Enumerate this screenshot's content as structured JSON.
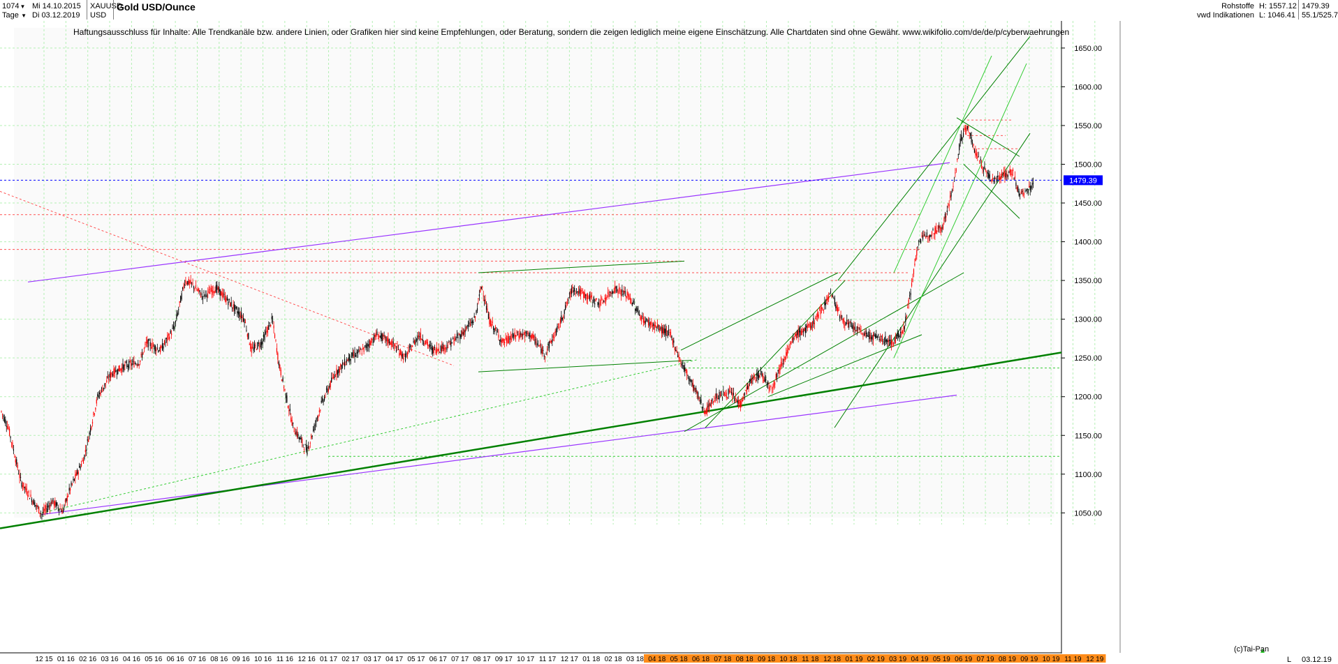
{
  "header": {
    "bars": "1074",
    "start_date": "Mi 14.10.2015",
    "end_date": "Di 03.12.2019",
    "period": "Tage",
    "symbol": "XAUUSD",
    "currency": "USD",
    "title": "Gold USD/Ounce",
    "category": "Rohstoffe",
    "source": "vwd Indikationen",
    "high_label": "H: 1557.12",
    "low_label": "L: 1046.41",
    "last_value": "1479.39",
    "extra_value": "55.1/525.7"
  },
  "disclaimer": "Haftungsausschluss für Inhalte: Alle Trendkanäle bzw. andere Linien, oder Grafiken hier sind keine Empfehlungen, oder Beratung, sondern die zeigen lediglich meine eigene Einschätzung. Alle Chartdaten sind ohne Gewähr.  www.wikifolio.com/de/de/p/cyberwaehrungen",
  "footer": {
    "copyright": "(c)Tai-Pan",
    "scale_mode": "L",
    "date": "03.12.19"
  },
  "colors": {
    "up_candle": "#000000",
    "down_candle": "#ff0000",
    "price_line": "#0000ff",
    "channel_purple": "#9933ff",
    "trend_green": "#008000",
    "bright_green": "#33cc33",
    "resistance_red": "#ff5050",
    "grid": "#b3f0b3",
    "highlight_band": "#ff8c1a"
  },
  "chart_data": {
    "type": "candlestick",
    "title": "Gold USD/Ounce",
    "ylim": [
      1035,
      1685
    ],
    "last_price": 1479.39,
    "high": 1557.12,
    "low": 1046.41,
    "y_ticks": [
      1050,
      1100,
      1150,
      1200,
      1250,
      1300,
      1350,
      1400,
      1450,
      1500,
      1550,
      1600,
      1650
    ],
    "y_tick_labels": [
      "1050.00",
      "1100.00",
      "1150.00",
      "1200.00",
      "1250.00",
      "1300.00",
      "1350.00",
      "1400.00",
      "1450.00",
      "1500.00",
      "1550.00",
      "1600.00",
      "1650.00"
    ],
    "x_ticks": [
      "12 15",
      "01 16",
      "02 16",
      "03 16",
      "04 16",
      "05 16",
      "06 16",
      "07 16",
      "08 16",
      "09 16",
      "10 16",
      "11 16",
      "12 16",
      "01 17",
      "02 17",
      "03 17",
      "04 17",
      "05 17",
      "06 17",
      "07 17",
      "08 17",
      "09 17",
      "10 17",
      "11 17",
      "12 17",
      "01 18",
      "02 18",
      "03 18",
      "04 18",
      "05 18",
      "06 18",
      "07 18",
      "08 18",
      "09 18",
      "10 18",
      "11 18",
      "12 18",
      "01 19",
      "02 19",
      "03 19",
      "04 19",
      "05 19",
      "06 19",
      "07 19",
      "08 19",
      "09 19",
      "10 19",
      "11 19",
      "12 19"
    ],
    "price_path": [
      [
        0,
        1185
      ],
      [
        12,
        1160
      ],
      [
        30,
        1090
      ],
      [
        50,
        1062
      ],
      [
        60,
        1048
      ],
      [
        75,
        1065
      ],
      [
        90,
        1052
      ],
      [
        100,
        1080
      ],
      [
        120,
        1120
      ],
      [
        140,
        1200
      ],
      [
        160,
        1230
      ],
      [
        180,
        1240
      ],
      [
        200,
        1245
      ],
      [
        210,
        1270
      ],
      [
        230,
        1260
      ],
      [
        250,
        1290
      ],
      [
        265,
        1350
      ],
      [
        275,
        1345
      ],
      [
        290,
        1330
      ],
      [
        310,
        1340
      ],
      [
        330,
        1320
      ],
      [
        350,
        1300
      ],
      [
        360,
        1260
      ],
      [
        375,
        1270
      ],
      [
        390,
        1300
      ],
      [
        400,
        1240
      ],
      [
        420,
        1160
      ],
      [
        440,
        1130
      ],
      [
        460,
        1190
      ],
      [
        480,
        1230
      ],
      [
        500,
        1250
      ],
      [
        520,
        1260
      ],
      [
        540,
        1280
      ],
      [
        560,
        1270
      ],
      [
        580,
        1250
      ],
      [
        600,
        1280
      ],
      [
        620,
        1260
      ],
      [
        640,
        1265
      ],
      [
        660,
        1280
      ],
      [
        680,
        1300
      ],
      [
        690,
        1345
      ],
      [
        700,
        1300
      ],
      [
        720,
        1270
      ],
      [
        740,
        1280
      ],
      [
        760,
        1280
      ],
      [
        780,
        1255
      ],
      [
        800,
        1290
      ],
      [
        820,
        1340
      ],
      [
        840,
        1330
      ],
      [
        860,
        1320
      ],
      [
        880,
        1340
      ],
      [
        900,
        1330
      ],
      [
        920,
        1300
      ],
      [
        940,
        1290
      ],
      [
        960,
        1280
      ],
      [
        975,
        1245
      ],
      [
        995,
        1210
      ],
      [
        1010,
        1180
      ],
      [
        1025,
        1200
      ],
      [
        1045,
        1205
      ],
      [
        1060,
        1190
      ],
      [
        1075,
        1220
      ],
      [
        1090,
        1230
      ],
      [
        1105,
        1210
      ],
      [
        1120,
        1245
      ],
      [
        1140,
        1280
      ],
      [
        1160,
        1290
      ],
      [
        1175,
        1310
      ],
      [
        1190,
        1335
      ],
      [
        1205,
        1300
      ],
      [
        1220,
        1290
      ],
      [
        1240,
        1280
      ],
      [
        1260,
        1275
      ],
      [
        1280,
        1270
      ],
      [
        1295,
        1290
      ],
      [
        1305,
        1340
      ],
      [
        1315,
        1400
      ],
      [
        1330,
        1410
      ],
      [
        1350,
        1420
      ],
      [
        1365,
        1470
      ],
      [
        1375,
        1530
      ],
      [
        1385,
        1550
      ],
      [
        1395,
        1520
      ],
      [
        1405,
        1500
      ],
      [
        1420,
        1480
      ],
      [
        1435,
        1485
      ],
      [
        1450,
        1490
      ],
      [
        1460,
        1460
      ],
      [
        1470,
        1465
      ],
      [
        1480,
        1475
      ]
    ],
    "trend_lines": [
      {
        "color": "purple",
        "width": 1.2,
        "dash": false,
        "points": [
          [
            40,
            1348
          ],
          [
            1360,
            1502
          ]
        ]
      },
      {
        "color": "purple",
        "width": 1.2,
        "dash": false,
        "points": [
          [
            60,
            1048
          ],
          [
            1370,
            1202
          ]
        ]
      },
      {
        "color": "dark-green",
        "width": 2.5,
        "dash": false,
        "points": [
          [
            0,
            1030
          ],
          [
            1520,
            1257
          ]
        ]
      },
      {
        "color": "green",
        "width": 1,
        "dash": false,
        "points": [
          [
            685,
            1360
          ],
          [
            980,
            1375
          ]
        ]
      },
      {
        "color": "green",
        "width": 1,
        "dash": false,
        "points": [
          [
            685,
            1232
          ],
          [
            990,
            1247
          ]
        ]
      },
      {
        "color": "green",
        "width": 1,
        "dash": false,
        "points": [
          [
            980,
            1155
          ],
          [
            1380,
            1360
          ]
        ]
      },
      {
        "color": "green",
        "width": 1,
        "dash": false,
        "points": [
          [
            975,
            1260
          ],
          [
            1200,
            1360
          ]
        ]
      },
      {
        "color": "green",
        "width": 1,
        "dash": false,
        "points": [
          [
            1010,
            1160
          ],
          [
            1210,
            1350
          ]
        ]
      },
      {
        "color": "green",
        "width": 1,
        "dash": false,
        "points": [
          [
            1195,
            1160
          ],
          [
            1475,
            1540
          ]
        ]
      },
      {
        "color": "green",
        "width": 1,
        "dash": false,
        "points": [
          [
            1200,
            1350
          ],
          [
            1475,
            1665
          ]
        ]
      },
      {
        "color": "green",
        "width": 1,
        "dash": false,
        "points": [
          [
            1100,
            1200
          ],
          [
            1320,
            1280
          ]
        ]
      },
      {
        "color": "bright-green",
        "width": 1,
        "dash": false,
        "points": [
          [
            1280,
            1250
          ],
          [
            1470,
            1630
          ]
        ]
      },
      {
        "color": "bright-green",
        "width": 1,
        "dash": false,
        "points": [
          [
            1280,
            1360
          ],
          [
            1420,
            1640
          ]
        ]
      },
      {
        "color": "bright-green",
        "width": 1,
        "dash": true,
        "points": [
          [
            60,
            1050
          ],
          [
            1000,
            1248
          ]
        ]
      },
      {
        "color": "green",
        "width": 1,
        "dash": false,
        "points": [
          [
            1370,
            1560
          ],
          [
            1460,
            1510
          ]
        ]
      },
      {
        "color": "green",
        "width": 1,
        "dash": false,
        "points": [
          [
            1380,
            1500
          ],
          [
            1460,
            1430
          ]
        ]
      }
    ],
    "resistance_lines": [
      {
        "level": 1390,
        "x_start": 0,
        "x_end": 1320
      },
      {
        "level": 1435,
        "x_start": 0,
        "x_end": 1320
      },
      {
        "level": 1375,
        "x_start": 265,
        "x_end": 980
      },
      {
        "level": 1360,
        "x_start": 265,
        "x_end": 1300
      },
      {
        "level": 1350,
        "x_start": 1190,
        "x_end": 1300
      },
      {
        "level": 1557,
        "x_start": 1385,
        "x_end": 1450
      },
      {
        "level": 1537,
        "x_start": 1385,
        "x_end": 1440
      },
      {
        "level": 1520,
        "x_start": 1400,
        "x_end": 1460
      }
    ],
    "diagonal_red_line": [
      [
        0,
        1465
      ],
      [
        650,
        1240
      ]
    ],
    "support_green_dashed": [
      {
        "level": 1123,
        "x_start": 470,
        "x_end": 1520
      },
      {
        "level": 1237,
        "x_start": 980,
        "x_end": 1520
      }
    ]
  }
}
